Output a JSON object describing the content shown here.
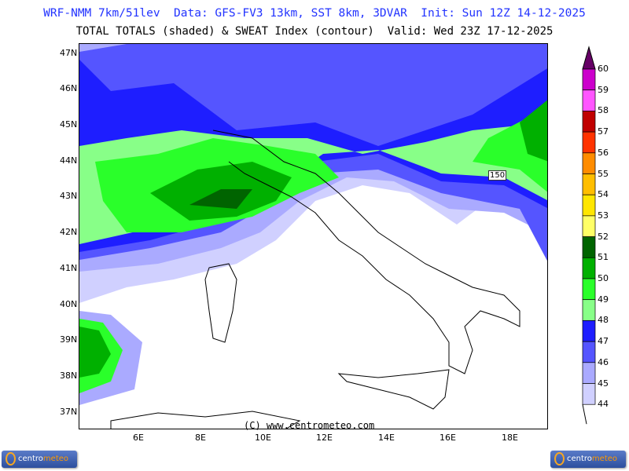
{
  "header": {
    "line1": "WRF-NMM 7km/51lev  Data: GFS-FV3 13km, SST 8km, 3DVAR  Init: Sun 12Z 14-12-2025",
    "line2": "TOTAL TOTALS (shaded) & SWEAT Index (contour)  Valid: Wed 23Z 17-12-2025"
  },
  "map": {
    "lat_labels": [
      "47N",
      "46N",
      "45N",
      "44N",
      "43N",
      "42N",
      "41N",
      "40N",
      "39N",
      "38N",
      "37N"
    ],
    "lon_labels": [
      "6E",
      "8E",
      "10E",
      "12E",
      "14E",
      "16E",
      "18E"
    ],
    "contour_label": "150",
    "copyright": "(C) www.centrometeo.com"
  },
  "colorbar": {
    "labels": [
      "60",
      "59",
      "58",
      "57",
      "56",
      "55",
      "54",
      "53",
      "52",
      "51",
      "50",
      "49",
      "48",
      "47",
      "46",
      "45",
      "44"
    ],
    "colors": [
      "#cc00cc",
      "#ff55ff",
      "#c00000",
      "#ff3300",
      "#ff8c00",
      "#ffbe00",
      "#ffe600",
      "#ffff66",
      "#006400",
      "#00b000",
      "#2aff2a",
      "#88ff88",
      "#1e1eff",
      "#5555ff",
      "#aaaaff",
      "#d0d0ff"
    ],
    "top_color": "#660066"
  },
  "logos": {
    "left": {
      "a": "centro",
      "b": "meteo"
    },
    "right": {
      "a": "centro",
      "b": "meteo"
    }
  }
}
